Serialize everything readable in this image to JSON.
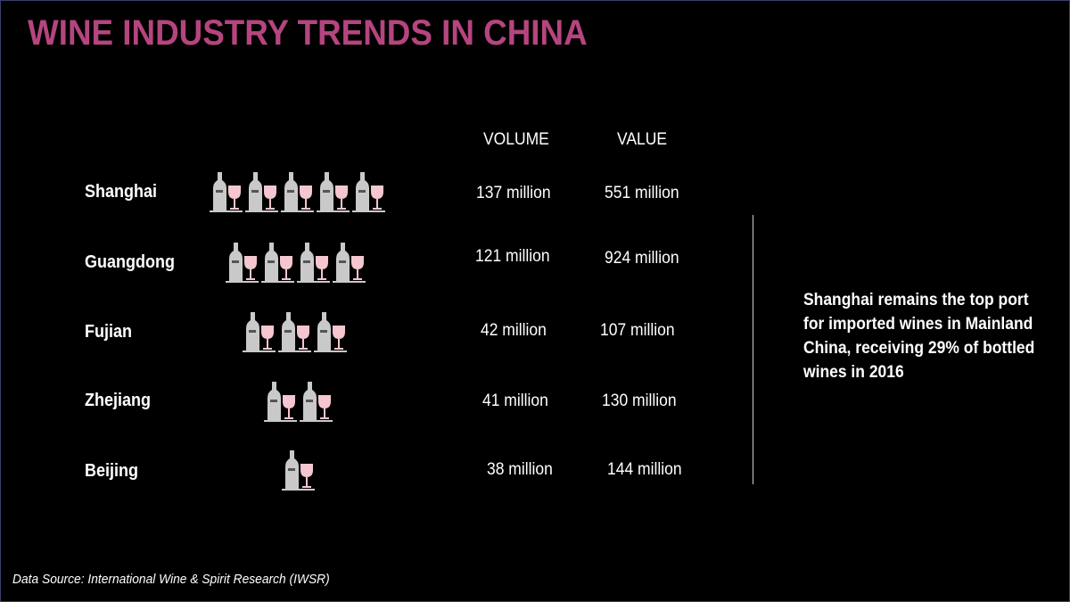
{
  "title": "WINE INDUSTRY TRENDS IN CHINA",
  "columns": {
    "volume": "VOLUME",
    "value": "VALUE"
  },
  "note": "Shanghai remains the top port for imported wines in Mainland China, receiving 29% of bottled wines in 2016",
  "source": "Data Source: International Wine & Spirit Research (IWSR)",
  "colors": {
    "title": "#b5457f",
    "bottle": "#c9c9c9",
    "glass": "#f4c6cf"
  },
  "icon": "wine-bottle-and-glass-icon",
  "chart_data": {
    "type": "table",
    "categories": [
      "Shanghai",
      "Guangdong",
      "Fujian",
      "Zhejiang",
      "Beijing"
    ],
    "icon_counts": [
      5,
      4,
      3,
      2,
      1
    ],
    "volume": [
      "137 million",
      "121 million",
      "42 million",
      "41 million",
      "38 million"
    ],
    "value": [
      "551 million",
      "924 million",
      "107 million",
      "130 million",
      "144 million"
    ]
  }
}
